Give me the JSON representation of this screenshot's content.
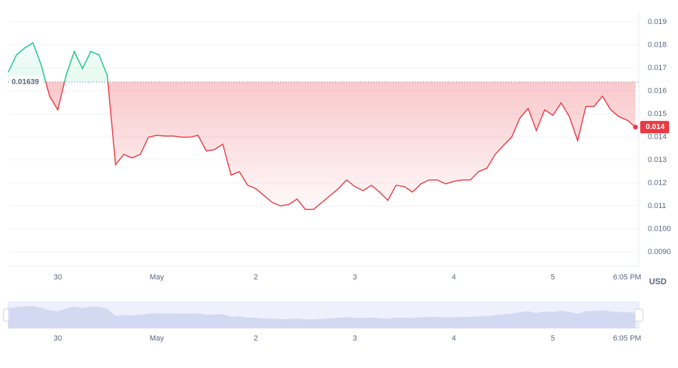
{
  "chart_data": {
    "type": "line",
    "categories": [
      null,
      null,
      null,
      null,
      null,
      null,
      "30",
      null,
      null,
      null,
      null,
      null,
      null,
      null,
      null,
      null,
      null,
      null,
      "May",
      null,
      null,
      null,
      null,
      null,
      null,
      null,
      null,
      null,
      null,
      null,
      "2",
      null,
      null,
      null,
      null,
      null,
      null,
      null,
      null,
      null,
      null,
      null,
      "3",
      null,
      null,
      null,
      null,
      null,
      null,
      null,
      null,
      null,
      null,
      null,
      "4",
      null,
      null,
      null,
      null,
      null,
      null,
      null,
      null,
      null,
      null,
      null,
      "5",
      null,
      null,
      null,
      null,
      null,
      null,
      null,
      null,
      "6:05 PM",
      null
    ],
    "values": [
      0.01682,
      0.01757,
      0.01787,
      0.0181,
      0.01712,
      0.01578,
      0.01518,
      0.01667,
      0.01772,
      0.01697,
      0.01772,
      0.01757,
      0.01667,
      0.01279,
      0.01324,
      0.01309,
      0.01324,
      0.01399,
      0.01407,
      0.01404,
      0.01404,
      0.01399,
      0.01399,
      0.01407,
      0.01339,
      0.01345,
      0.01369,
      0.01234,
      0.01249,
      0.0119,
      0.01175,
      0.01145,
      0.01115,
      0.011,
      0.01106,
      0.0113,
      0.01085,
      0.01085,
      0.01115,
      0.01145,
      0.01175,
      0.01213,
      0.01184,
      0.01166,
      0.0119,
      0.0116,
      0.01124,
      0.0119,
      0.01184,
      0.0116,
      0.01196,
      0.01213,
      0.01213,
      0.01196,
      0.01207,
      0.01213,
      0.01213,
      0.01249,
      0.01264,
      0.01324,
      0.01363,
      0.01399,
      0.01482,
      0.01524,
      0.01428,
      0.01518,
      0.01494,
      0.01548,
      0.01488,
      0.01384,
      0.01533,
      0.01533,
      0.01578,
      0.01518,
      0.01488,
      0.01473,
      0.01443
    ],
    "up_color": "#16c784",
    "down_color": "#ea3943",
    "baseline": {
      "value": 0.01639,
      "label": "0.01639"
    },
    "current_price": {
      "value": 0.01443,
      "label": "0.014"
    },
    "ylim": [
      0.00837,
      0.01942
    ],
    "yticks": [
      {
        "value": 0.009,
        "label": "0.0090"
      },
      {
        "value": 0.01,
        "label": "0.0100"
      },
      0.011,
      0.012,
      0.013,
      0.014,
      0.015,
      0.016,
      0.017,
      0.018,
      0.019
    ],
    "y_axis_label": "USD",
    "grid": true
  }
}
